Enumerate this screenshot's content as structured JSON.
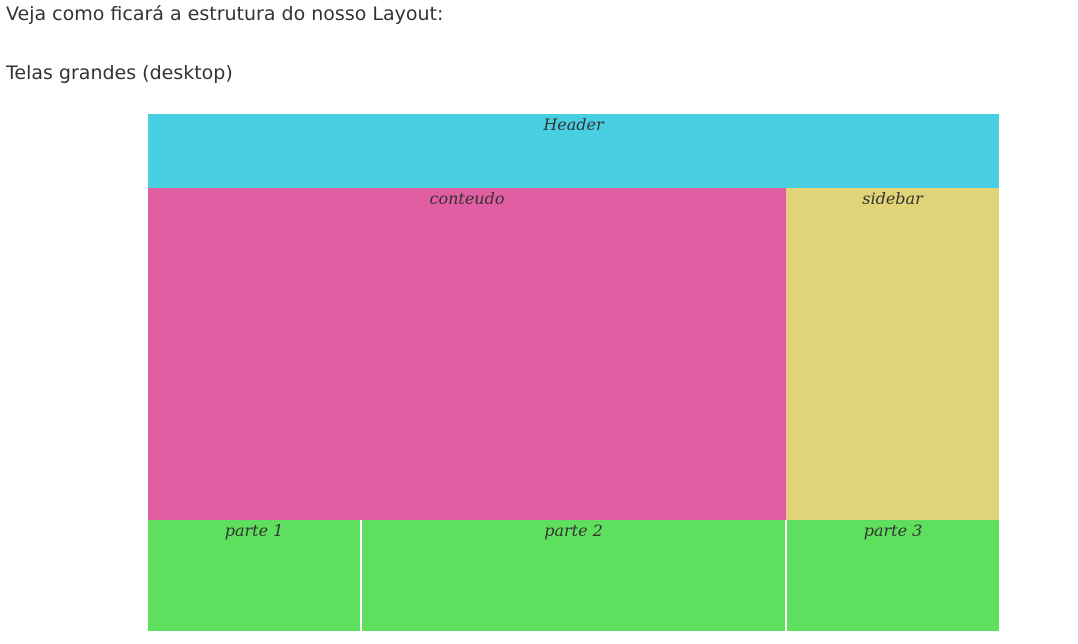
{
  "intro_text": "Veja como ficará a estrutura do nosso Layout:",
  "section_title": "Telas grandes (desktop)",
  "layout": {
    "header": {
      "label": "Header",
      "color": "#48d0e2"
    },
    "content": {
      "label": "conteudo",
      "color": "#e05ea1"
    },
    "sidebar": {
      "label": "sidebar",
      "color": "#e0d378"
    },
    "parts": [
      {
        "label": "parte 1",
        "color": "#5ee05e"
      },
      {
        "label": "parte 2",
        "color": "#5ee05e"
      },
      {
        "label": "parte 3",
        "color": "#5ee05e"
      }
    ]
  }
}
